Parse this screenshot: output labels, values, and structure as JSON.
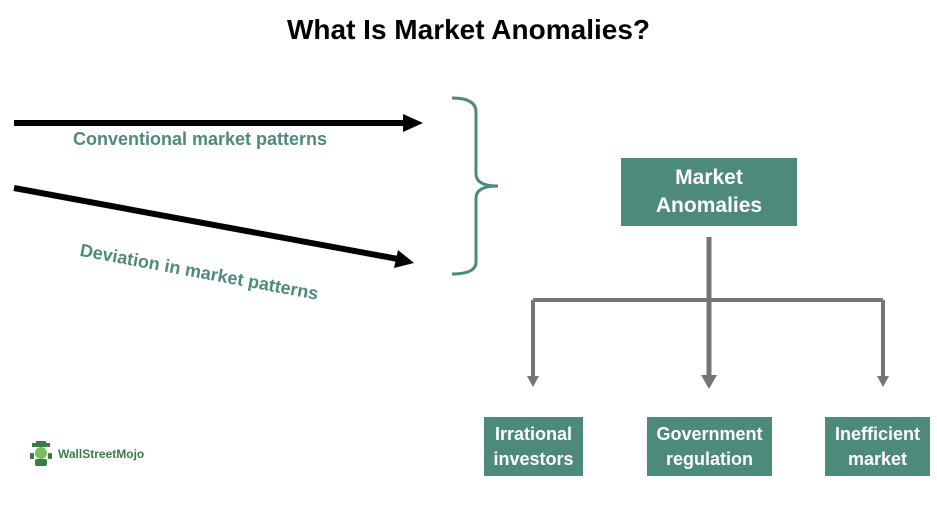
{
  "title": "What Is Market Anomalies?",
  "arrows": {
    "conventional": "Conventional market patterns",
    "deviation": "Deviation in market patterns"
  },
  "center": {
    "line1": "Market",
    "line2": "Anomalies"
  },
  "children": [
    {
      "line1": "Irrational",
      "line2": "investors"
    },
    {
      "line1": "Government",
      "line2": "regulation"
    },
    {
      "line1": "Inefficient",
      "line2": "market"
    }
  ],
  "logo": {
    "text": "WallStreetMojo"
  },
  "colors": {
    "teal": "#4e8a7c",
    "connector_gray": "#757575",
    "arrow": "#000000"
  }
}
